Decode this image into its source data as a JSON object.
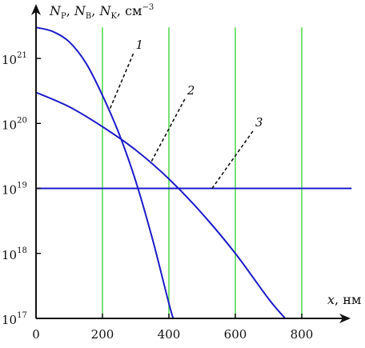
{
  "chart_data": {
    "type": "line",
    "ylabel": {
      "n1": "N",
      "s1": "P",
      "n2": "N",
      "s2": "B",
      "n3": "N",
      "s3": "K",
      "unit": "см",
      "unit_exp": "−3"
    },
    "xlabel": {
      "var": "x",
      "unit": "нм"
    },
    "xlim": [
      0,
      950
    ],
    "ylim": [
      1e+17,
      3e+21
    ],
    "yscale": "log",
    "x_ticks": [
      0,
      200,
      400,
      600,
      800
    ],
    "y_ticks": [
      {
        "value": 1e+17,
        "base": "10",
        "exp": "17"
      },
      {
        "value": 1e+18,
        "base": "10",
        "exp": "18"
      },
      {
        "value": 1e+19,
        "base": "10",
        "exp": "19"
      },
      {
        "value": 1e+20,
        "base": "10",
        "exp": "20"
      },
      {
        "value": 1e+21,
        "base": "10",
        "exp": "21"
      }
    ],
    "grid_x": [
      200,
      400,
      600,
      800
    ],
    "grid_color": "#4cd94c",
    "curve_color": "#1c1cc8",
    "series": [
      {
        "label": "1",
        "x": [
          0,
          50,
          100,
          150,
          200,
          250,
          300,
          350,
          400,
          413
        ],
        "y": [
          3e+21,
          2.6e+21,
          1.8e+21,
          8.5e+20,
          2.7e+20,
          6.9e+19,
          1.3e+19,
          1.7e+18,
          1.7e+17,
          1e+17
        ]
      },
      {
        "label": "2",
        "x": [
          0,
          100,
          200,
          300,
          400,
          500,
          600,
          700,
          750
        ],
        "y": [
          3e+20,
          1.8e+20,
          8.9e+19,
          3.9e+19,
          1.4e+19,
          4.1e+18,
          1e+18,
          2e+17,
          1e+17
        ]
      },
      {
        "label": "3",
        "x": [
          0,
          950
        ],
        "y": [
          1e+19,
          1e+19
        ]
      }
    ],
    "labels": [
      {
        "text": "1",
        "x": 300,
        "y_anchor": 1.4e+21
      },
      {
        "text": "2",
        "x": 455,
        "y_anchor": 2.8e+20
      },
      {
        "text": "3",
        "x": 660,
        "y_anchor": 9e+19
      }
    ]
  }
}
